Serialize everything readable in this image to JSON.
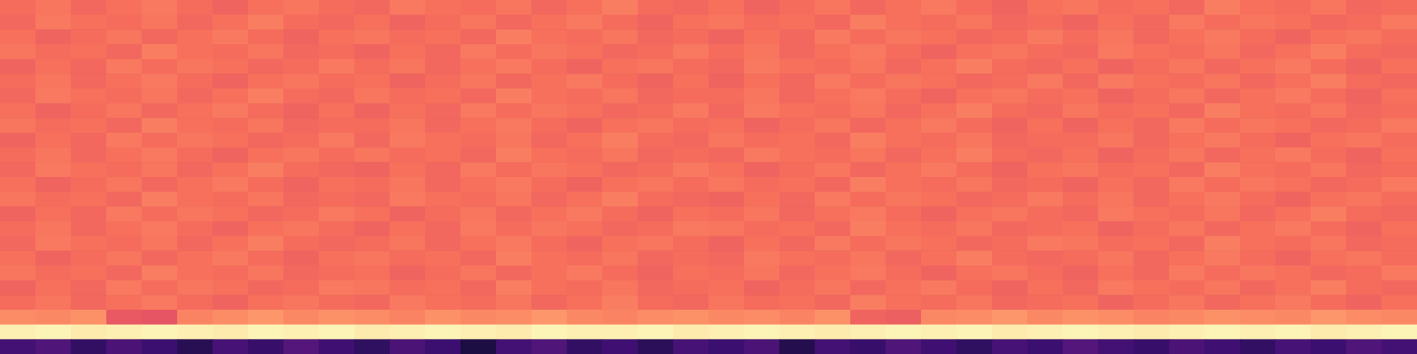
{
  "chart_data": {
    "type": "heatmap",
    "tick_labels": false,
    "zlim": [
      0,
      1
    ],
    "cells": [
      [
        0.69,
        0.71,
        0.68,
        0.7,
        0.72,
        0.69,
        0.67,
        0.7,
        0.71,
        0.69,
        0.68,
        0.72,
        0.7,
        0.69,
        0.71,
        0.68,
        0.7,
        0.73,
        0.69,
        0.68,
        0.7,
        0.67,
        0.69,
        0.71,
        0.68,
        0.7,
        0.72,
        0.69,
        0.67,
        0.7,
        0.71,
        0.69,
        0.7,
        0.68,
        0.73,
        0.7,
        0.69,
        0.71,
        0.68,
        0.69
      ],
      [
        0.68,
        0.72,
        0.7,
        0.69,
        0.71,
        0.68,
        0.7,
        0.73,
        0.69,
        0.68,
        0.7,
        0.67,
        0.69,
        0.71,
        0.68,
        0.7,
        0.72,
        0.69,
        0.67,
        0.7,
        0.71,
        0.69,
        0.7,
        0.68,
        0.73,
        0.7,
        0.69,
        0.71,
        0.68,
        0.69,
        0.67,
        0.7,
        0.68,
        0.72,
        0.69,
        0.71,
        0.7,
        0.68,
        0.69,
        0.72
      ],
      [
        0.7,
        0.67,
        0.69,
        0.71,
        0.68,
        0.7,
        0.72,
        0.69,
        0.67,
        0.7,
        0.71,
        0.69,
        0.7,
        0.68,
        0.73,
        0.7,
        0.69,
        0.71,
        0.68,
        0.69,
        0.67,
        0.7,
        0.68,
        0.72,
        0.69,
        0.71,
        0.7,
        0.68,
        0.69,
        0.72,
        0.69,
        0.71,
        0.68,
        0.7,
        0.72,
        0.69,
        0.67,
        0.7,
        0.71,
        0.69
      ],
      [
        0.71,
        0.69,
        0.7,
        0.68,
        0.73,
        0.7,
        0.69,
        0.71,
        0.68,
        0.69,
        0.67,
        0.7,
        0.68,
        0.72,
        0.69,
        0.71,
        0.7,
        0.68,
        0.69,
        0.72,
        0.69,
        0.71,
        0.68,
        0.7,
        0.72,
        0.69,
        0.67,
        0.7,
        0.71,
        0.69,
        0.68,
        0.72,
        0.7,
        0.69,
        0.71,
        0.68,
        0.7,
        0.73,
        0.69,
        0.68
      ],
      [
        0.67,
        0.7,
        0.68,
        0.72,
        0.69,
        0.71,
        0.7,
        0.68,
        0.69,
        0.72,
        0.69,
        0.71,
        0.68,
        0.7,
        0.72,
        0.69,
        0.67,
        0.7,
        0.71,
        0.69,
        0.68,
        0.72,
        0.7,
        0.69,
        0.71,
        0.68,
        0.7,
        0.73,
        0.69,
        0.68,
        0.7,
        0.67,
        0.69,
        0.71,
        0.68,
        0.7,
        0.72,
        0.69,
        0.67,
        0.7
      ],
      [
        0.69,
        0.71,
        0.68,
        0.7,
        0.72,
        0.69,
        0.67,
        0.7,
        0.71,
        0.69,
        0.7,
        0.67,
        0.69,
        0.71,
        0.68,
        0.7,
        0.72,
        0.69,
        0.67,
        0.7,
        0.67,
        0.7,
        0.68,
        0.72,
        0.69,
        0.71,
        0.7,
        0.68,
        0.69,
        0.72,
        0.68,
        0.72,
        0.7,
        0.69,
        0.71,
        0.68,
        0.7,
        0.73,
        0.69,
        0.68
      ],
      [
        0.68,
        0.72,
        0.7,
        0.69,
        0.71,
        0.68,
        0.7,
        0.73,
        0.69,
        0.68,
        0.71,
        0.69,
        0.7,
        0.68,
        0.73,
        0.7,
        0.69,
        0.71,
        0.68,
        0.69,
        0.69,
        0.71,
        0.68,
        0.7,
        0.72,
        0.69,
        0.67,
        0.7,
        0.71,
        0.69,
        0.7,
        0.67,
        0.69,
        0.71,
        0.68,
        0.7,
        0.72,
        0.69,
        0.67,
        0.7
      ],
      [
        0.7,
        0.67,
        0.69,
        0.71,
        0.68,
        0.7,
        0.72,
        0.69,
        0.67,
        0.7,
        0.67,
        0.7,
        0.68,
        0.72,
        0.69,
        0.71,
        0.7,
        0.68,
        0.69,
        0.72,
        0.68,
        0.72,
        0.7,
        0.69,
        0.71,
        0.68,
        0.7,
        0.73,
        0.69,
        0.68,
        0.71,
        0.69,
        0.7,
        0.68,
        0.73,
        0.7,
        0.69,
        0.71,
        0.68,
        0.69
      ],
      [
        0.71,
        0.69,
        0.7,
        0.68,
        0.73,
        0.7,
        0.69,
        0.71,
        0.68,
        0.69,
        0.69,
        0.71,
        0.68,
        0.7,
        0.72,
        0.69,
        0.67,
        0.7,
        0.71,
        0.69,
        0.7,
        0.67,
        0.69,
        0.71,
        0.68,
        0.7,
        0.72,
        0.69,
        0.67,
        0.7,
        0.67,
        0.7,
        0.68,
        0.72,
        0.69,
        0.71,
        0.7,
        0.68,
        0.69,
        0.72
      ],
      [
        0.67,
        0.7,
        0.68,
        0.72,
        0.69,
        0.71,
        0.7,
        0.68,
        0.69,
        0.72,
        0.68,
        0.72,
        0.7,
        0.69,
        0.71,
        0.68,
        0.7,
        0.73,
        0.69,
        0.68,
        0.71,
        0.69,
        0.7,
        0.68,
        0.73,
        0.7,
        0.69,
        0.71,
        0.68,
        0.69,
        0.69,
        0.71,
        0.68,
        0.7,
        0.72,
        0.69,
        0.67,
        0.7,
        0.71,
        0.69
      ],
      [
        0.69,
        0.71,
        0.68,
        0.7,
        0.72,
        0.69,
        0.67,
        0.7,
        0.71,
        0.69,
        0.71,
        0.69,
        0.7,
        0.68,
        0.73,
        0.7,
        0.69,
        0.71,
        0.68,
        0.69,
        0.68,
        0.72,
        0.7,
        0.69,
        0.71,
        0.68,
        0.7,
        0.73,
        0.69,
        0.68,
        0.7,
        0.67,
        0.69,
        0.71,
        0.68,
        0.7,
        0.72,
        0.69,
        0.67,
        0.7
      ],
      [
        0.68,
        0.72,
        0.7,
        0.69,
        0.71,
        0.68,
        0.7,
        0.73,
        0.69,
        0.68,
        0.67,
        0.7,
        0.68,
        0.72,
        0.69,
        0.71,
        0.7,
        0.68,
        0.69,
        0.72,
        0.7,
        0.67,
        0.69,
        0.71,
        0.68,
        0.7,
        0.72,
        0.69,
        0.67,
        0.7,
        0.71,
        0.69,
        0.7,
        0.68,
        0.73,
        0.7,
        0.69,
        0.71,
        0.68,
        0.69
      ],
      [
        0.7,
        0.67,
        0.69,
        0.71,
        0.68,
        0.7,
        0.72,
        0.69,
        0.67,
        0.7,
        0.69,
        0.71,
        0.68,
        0.7,
        0.72,
        0.69,
        0.67,
        0.7,
        0.71,
        0.69,
        0.71,
        0.69,
        0.7,
        0.68,
        0.73,
        0.7,
        0.69,
        0.71,
        0.68,
        0.69,
        0.67,
        0.7,
        0.68,
        0.72,
        0.69,
        0.71,
        0.7,
        0.68,
        0.69,
        0.72
      ],
      [
        0.71,
        0.69,
        0.7,
        0.68,
        0.73,
        0.7,
        0.69,
        0.71,
        0.68,
        0.69,
        0.68,
        0.72,
        0.7,
        0.69,
        0.71,
        0.68,
        0.7,
        0.73,
        0.69,
        0.68,
        0.67,
        0.7,
        0.68,
        0.72,
        0.69,
        0.71,
        0.7,
        0.68,
        0.69,
        0.72,
        0.69,
        0.71,
        0.68,
        0.7,
        0.72,
        0.69,
        0.67,
        0.7,
        0.71,
        0.69
      ],
      [
        0.67,
        0.7,
        0.68,
        0.72,
        0.69,
        0.71,
        0.7,
        0.68,
        0.69,
        0.72,
        0.7,
        0.67,
        0.69,
        0.71,
        0.68,
        0.7,
        0.72,
        0.69,
        0.67,
        0.7,
        0.69,
        0.71,
        0.68,
        0.7,
        0.72,
        0.69,
        0.67,
        0.7,
        0.71,
        0.69,
        0.68,
        0.72,
        0.7,
        0.69,
        0.71,
        0.68,
        0.7,
        0.73,
        0.69,
        0.68
      ],
      [
        0.69,
        0.71,
        0.68,
        0.7,
        0.72,
        0.69,
        0.67,
        0.7,
        0.71,
        0.69,
        0.67,
        0.7,
        0.68,
        0.72,
        0.69,
        0.71,
        0.7,
        0.68,
        0.69,
        0.72,
        0.71,
        0.69,
        0.7,
        0.68,
        0.73,
        0.7,
        0.69,
        0.71,
        0.68,
        0.69,
        0.7,
        0.67,
        0.69,
        0.71,
        0.68,
        0.7,
        0.72,
        0.69,
        0.67,
        0.7
      ],
      [
        0.68,
        0.72,
        0.7,
        0.69,
        0.71,
        0.68,
        0.7,
        0.73,
        0.69,
        0.68,
        0.69,
        0.71,
        0.68,
        0.7,
        0.72,
        0.69,
        0.67,
        0.7,
        0.71,
        0.69,
        0.67,
        0.7,
        0.68,
        0.72,
        0.69,
        0.71,
        0.7,
        0.68,
        0.69,
        0.72,
        0.71,
        0.69,
        0.7,
        0.68,
        0.73,
        0.7,
        0.69,
        0.71,
        0.68,
        0.69
      ],
      [
        0.7,
        0.67,
        0.69,
        0.71,
        0.68,
        0.7,
        0.72,
        0.69,
        0.67,
        0.7,
        0.71,
        0.69,
        0.7,
        0.68,
        0.73,
        0.7,
        0.69,
        0.71,
        0.68,
        0.69,
        0.68,
        0.72,
        0.7,
        0.69,
        0.71,
        0.68,
        0.7,
        0.73,
        0.69,
        0.68,
        0.69,
        0.71,
        0.68,
        0.7,
        0.72,
        0.69,
        0.67,
        0.7,
        0.71,
        0.69
      ],
      [
        0.71,
        0.69,
        0.7,
        0.68,
        0.73,
        0.7,
        0.69,
        0.71,
        0.68,
        0.69,
        0.7,
        0.67,
        0.69,
        0.71,
        0.68,
        0.7,
        0.72,
        0.69,
        0.67,
        0.7,
        0.69,
        0.71,
        0.68,
        0.7,
        0.72,
        0.69,
        0.67,
        0.7,
        0.71,
        0.69,
        0.67,
        0.7,
        0.68,
        0.72,
        0.69,
        0.71,
        0.7,
        0.68,
        0.69,
        0.72
      ],
      [
        0.67,
        0.7,
        0.68,
        0.72,
        0.69,
        0.71,
        0.7,
        0.68,
        0.69,
        0.72,
        0.71,
        0.69,
        0.7,
        0.68,
        0.73,
        0.7,
        0.69,
        0.71,
        0.68,
        0.69,
        0.7,
        0.67,
        0.69,
        0.71,
        0.68,
        0.7,
        0.72,
        0.69,
        0.67,
        0.7,
        0.68,
        0.72,
        0.7,
        0.69,
        0.71,
        0.68,
        0.7,
        0.73,
        0.69,
        0.68
      ],
      [
        0.69,
        0.71,
        0.68,
        0.7,
        0.72,
        0.69,
        0.67,
        0.7,
        0.71,
        0.69,
        0.68,
        0.72,
        0.7,
        0.69,
        0.71,
        0.68,
        0.7,
        0.73,
        0.69,
        0.68,
        0.71,
        0.69,
        0.7,
        0.68,
        0.73,
        0.7,
        0.69,
        0.71,
        0.68,
        0.69,
        0.7,
        0.67,
        0.69,
        0.71,
        0.68,
        0.7,
        0.72,
        0.69,
        0.67,
        0.7
      ],
      [
        0.76,
        0.75,
        0.77,
        0.64,
        0.63,
        0.74,
        0.76,
        0.78,
        0.75,
        0.77,
        0.76,
        0.74,
        0.77,
        0.75,
        0.76,
        0.78,
        0.75,
        0.74,
        0.76,
        0.77,
        0.75,
        0.76,
        0.74,
        0.77,
        0.67,
        0.66,
        0.75,
        0.76,
        0.78,
        0.75,
        0.77,
        0.76,
        0.74,
        0.75,
        0.77,
        0.76,
        0.75,
        0.78,
        0.76,
        0.75
      ],
      [
        0.97,
        0.98,
        0.96,
        0.97,
        0.98,
        0.97,
        0.96,
        0.98,
        0.97,
        0.98,
        0.96,
        0.97,
        0.98,
        0.97,
        0.96,
        0.98,
        0.97,
        0.97,
        0.98,
        0.96,
        0.97,
        0.98,
        0.97,
        0.96,
        0.97,
        0.98,
        0.97,
        0.98,
        0.96,
        0.97,
        0.98,
        0.97,
        0.96,
        0.97,
        0.98,
        0.97,
        0.98,
        0.96,
        0.97,
        0.98
      ],
      [
        0.22,
        0.25,
        0.18,
        0.24,
        0.2,
        0.15,
        0.23,
        0.19,
        0.26,
        0.21,
        0.17,
        0.24,
        0.2,
        0.12,
        0.22,
        0.25,
        0.18,
        0.21,
        0.16,
        0.23,
        0.2,
        0.24,
        0.14,
        0.22,
        0.19,
        0.25,
        0.21,
        0.17,
        0.23,
        0.2,
        0.26,
        0.22,
        0.19,
        0.24,
        0.21,
        0.18,
        0.23,
        0.2,
        0.25,
        0.22
      ]
    ]
  }
}
